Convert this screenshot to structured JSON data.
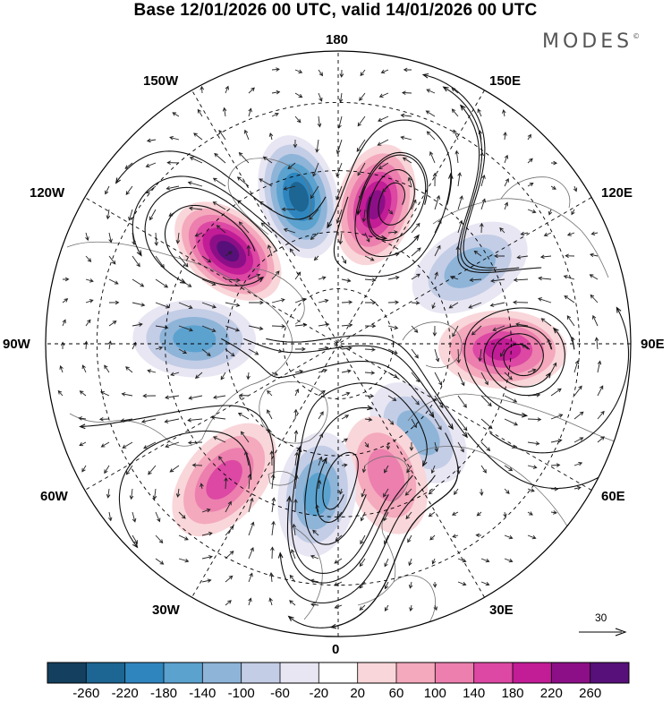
{
  "title": "Base 12/01/2026 00 UTC, valid 14/01/2026 00 UTC",
  "brand": {
    "name": "MODES",
    "mark": "©"
  },
  "longitude_labels": {
    "deg180": "180",
    "e150": "150E",
    "e120": "120E",
    "e90": "90E",
    "e60": "60E",
    "e30": "30E",
    "deg0": "0",
    "w30": "30W",
    "w60": "60W",
    "w90": "90W",
    "w120": "120W",
    "w150": "150W"
  },
  "reference_vector": {
    "label": "30"
  },
  "colorbar": {
    "levels": [
      "-260",
      "-220",
      "-180",
      "-140",
      "-100",
      "-60",
      "-20",
      "20",
      "60",
      "100",
      "140",
      "180",
      "220",
      "260"
    ],
    "colors": [
      "#143f5e",
      "#1d6592",
      "#2f86bf",
      "#5ba2cf",
      "#8eb4d8",
      "#c3cde6",
      "#e8e6f2",
      "#ffffff",
      "#f9d6d9",
      "#f4a9bd",
      "#ec7fae",
      "#dc48a3",
      "#c21c96",
      "#8d0f88",
      "#57107a"
    ]
  },
  "anomaly_centers": [
    {
      "sign": "negative",
      "peak": -230,
      "lon_deg": -165,
      "lat_deg": 50
    },
    {
      "sign": "positive",
      "peak": 240,
      "lon_deg": 165,
      "lat_deg": 52
    },
    {
      "sign": "positive",
      "peak": 270,
      "lon_deg": -130,
      "lat_deg": 52
    },
    {
      "sign": "negative",
      "peak": -150,
      "lon_deg": -92,
      "lat_deg": 52
    },
    {
      "sign": "negative",
      "peak": -110,
      "lon_deg": 120,
      "lat_deg": 50
    },
    {
      "sign": "positive",
      "peak": 200,
      "lon_deg": 88,
      "lat_deg": 47
    },
    {
      "sign": "negative",
      "peak": -140,
      "lon_deg": 42,
      "lat_deg": 58
    },
    {
      "sign": "positive",
      "peak": 130,
      "lon_deg": 20,
      "lat_deg": 53
    },
    {
      "sign": "negative",
      "peak": -170,
      "lon_deg": -8,
      "lat_deg": 50
    },
    {
      "sign": "positive",
      "peak": 160,
      "lon_deg": -40,
      "lat_deg": 44
    }
  ]
}
